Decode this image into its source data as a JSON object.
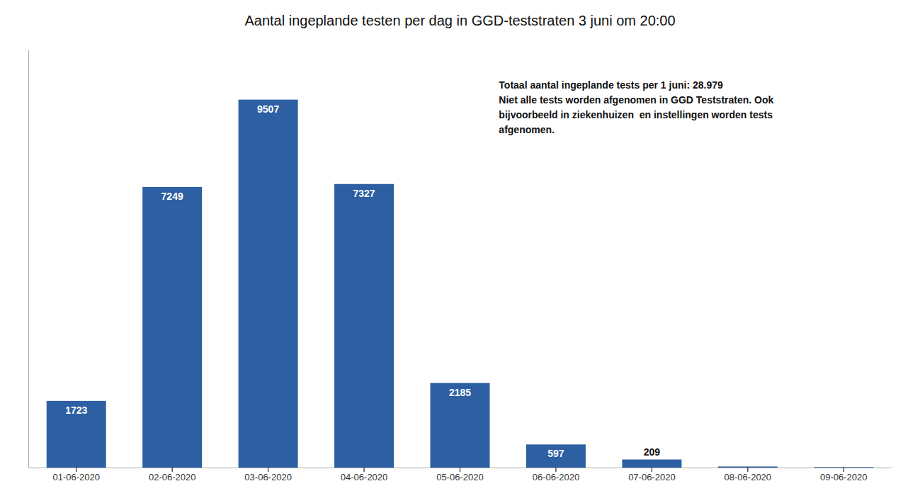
{
  "chart_data": {
    "type": "bar",
    "title": "Aantal ingeplande testen per dag in GGD-teststraten 3 juni om 20:00",
    "categories": [
      "01-06-2020",
      "02-06-2020",
      "03-06-2020",
      "04-06-2020",
      "05-06-2020",
      "06-06-2020",
      "07-06-2020",
      "08-06-2020",
      "09-06-2020"
    ],
    "values": [
      1723,
      7249,
      9507,
      7327,
      2185,
      597,
      209,
      28,
      15
    ],
    "value_labels": [
      "1723",
      "7249",
      "9507",
      "7327",
      "2185",
      "597",
      "209",
      null,
      null
    ],
    "color": "#2E5FA3",
    "ylim": [
      0,
      10800
    ],
    "grid": false,
    "tick_labels": "x",
    "annotations": [
      "Totaal aantal ingeplande tests per 1 juni: 28.979",
      "Niet alle tests worden afgenomen in GGD Teststraten. Ook",
      "bijvoorbeeld in ziekenhuizen  en instellingen worden tests",
      "afgenomen."
    ]
  }
}
